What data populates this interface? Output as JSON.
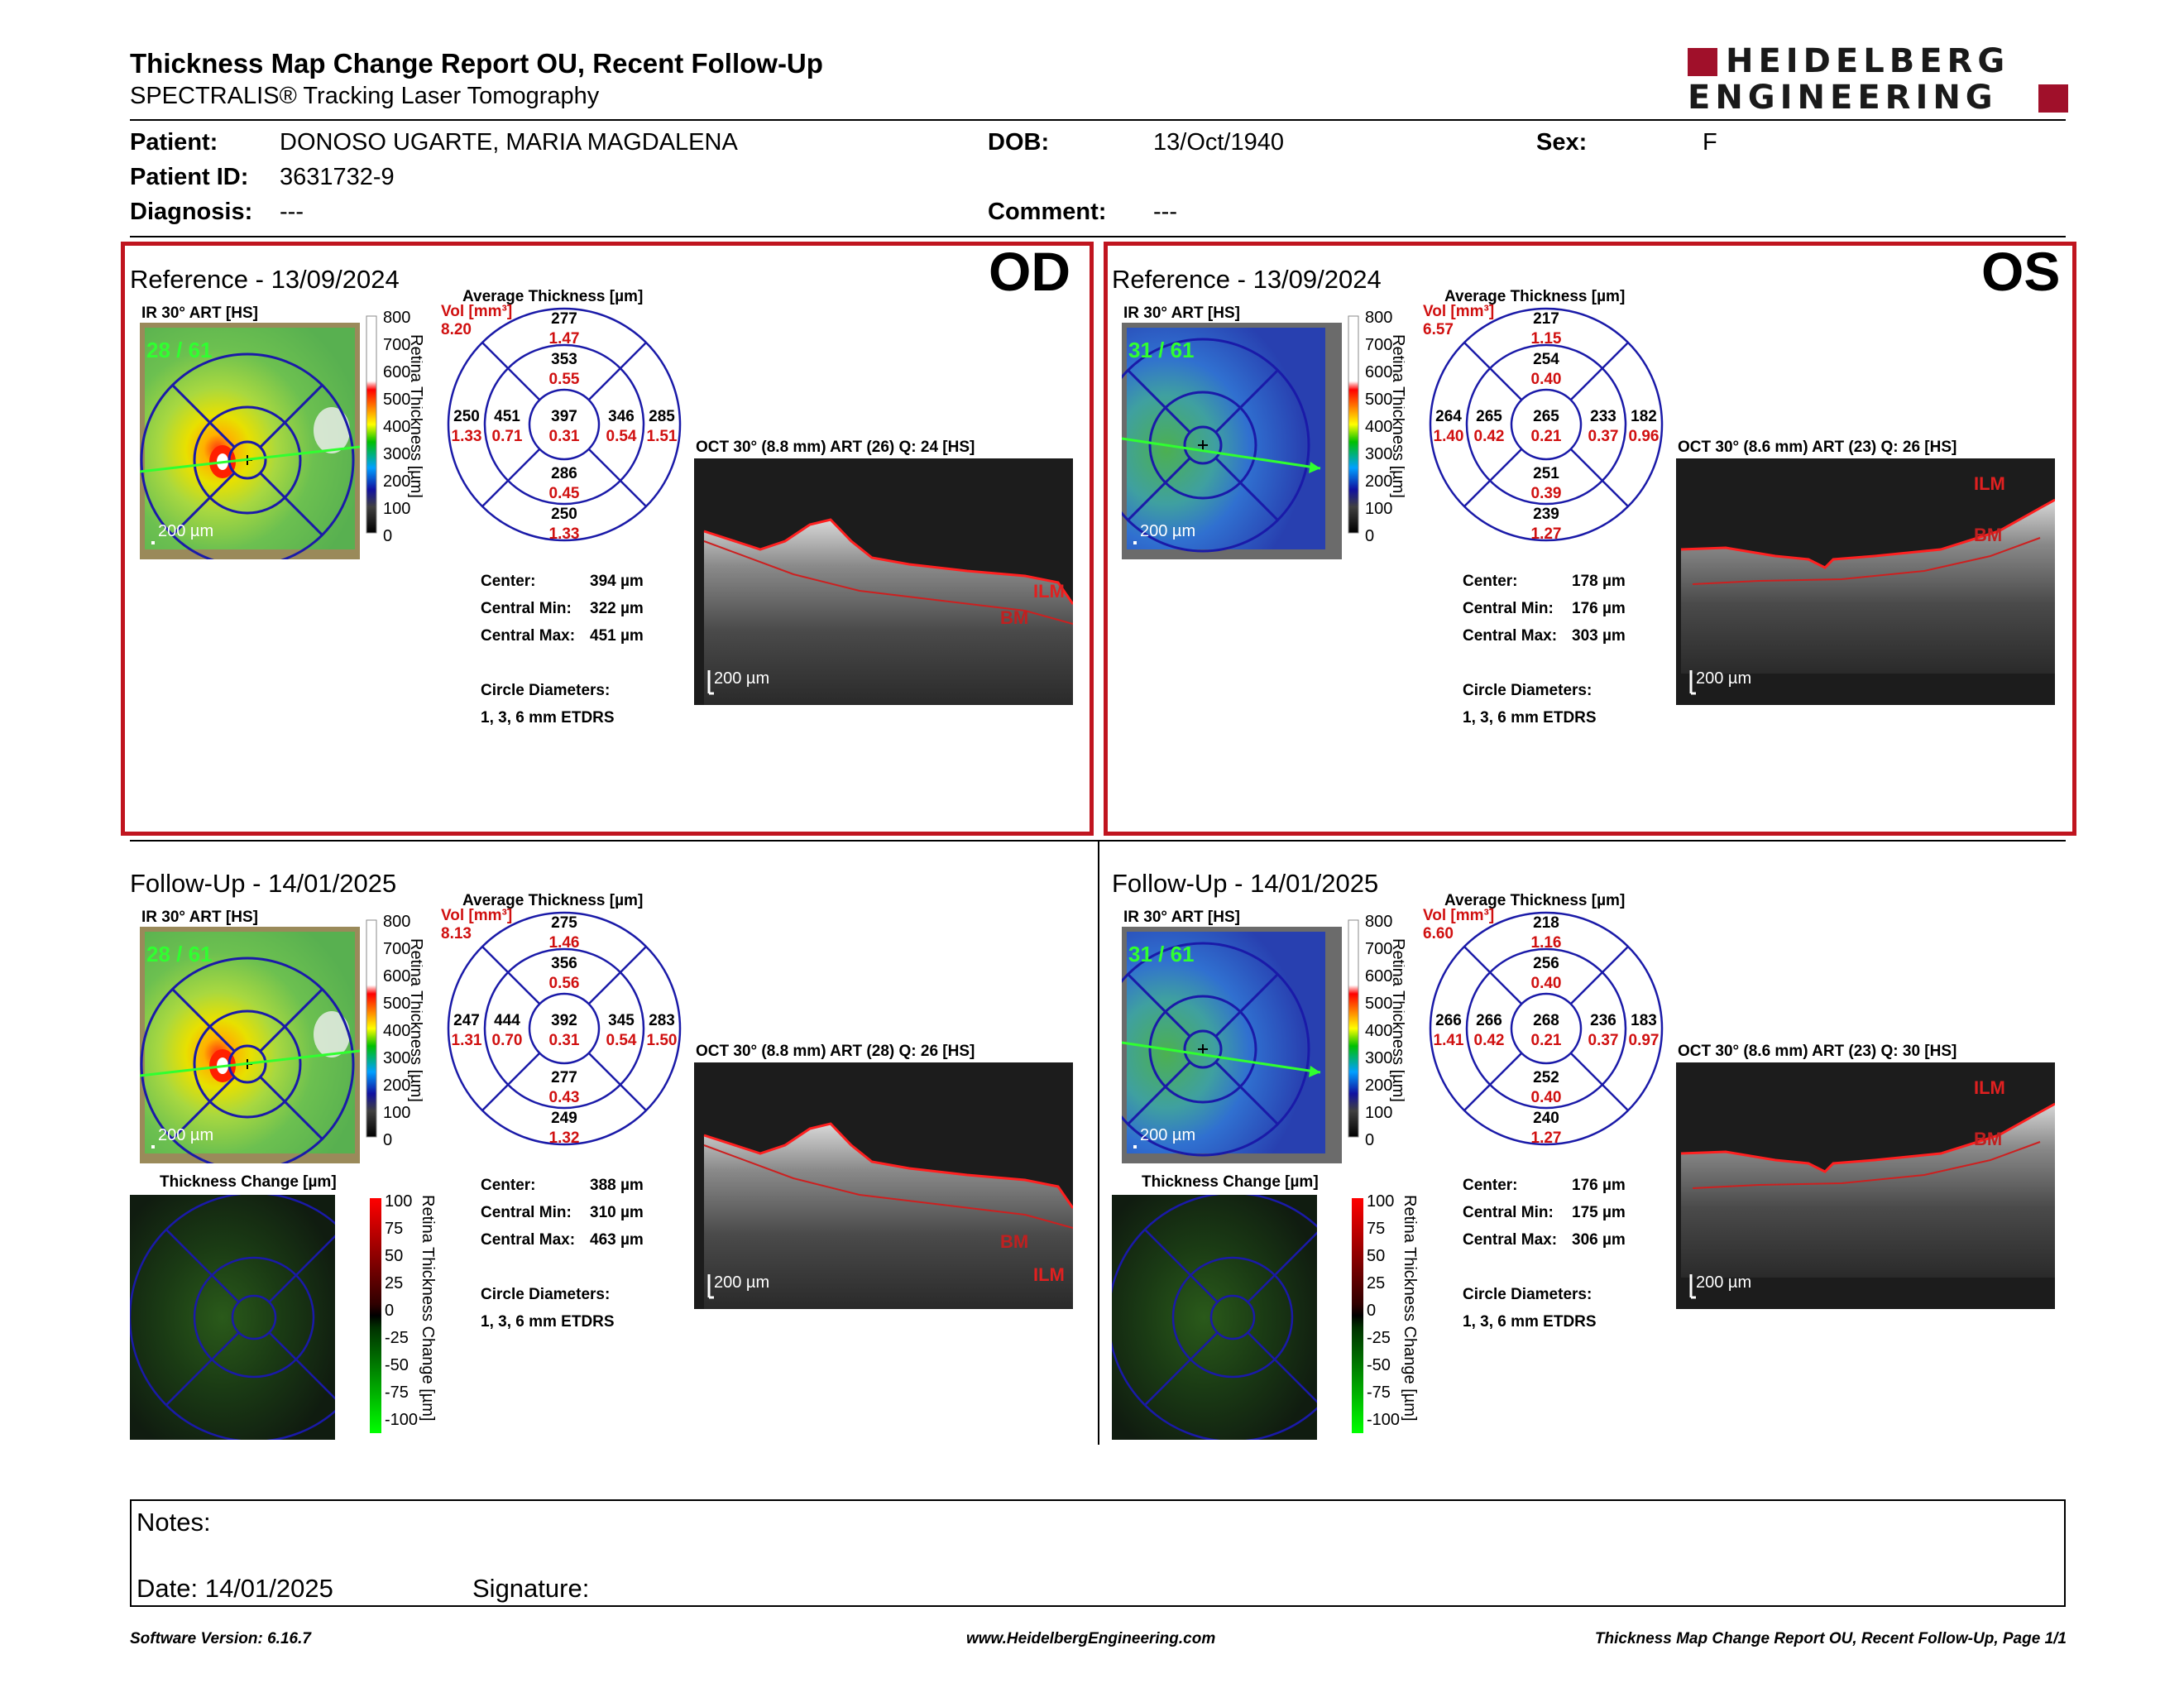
{
  "header": {
    "title": "Thickness Map Change Report OU, Recent Follow-Up",
    "subtitle": "SPECTRALIS® Tracking Laser Tomography",
    "logo_line1": "HEIDELBERG",
    "logo_line2": "ENGINEERING"
  },
  "patient": {
    "patient_label": "Patient:",
    "patient_value": "DONOSO UGARTE, MARIA MAGDALENA",
    "dob_label": "DOB:",
    "dob_value": "13/Oct/1940",
    "sex_label": "Sex:",
    "sex_value": "F",
    "id_label": "Patient ID:",
    "id_value": "3631732-9",
    "diagnosis_label": "Diagnosis:",
    "diagnosis_value": "---",
    "comment_label": "Comment:",
    "comment_value": "---"
  },
  "common": {
    "avg_thickness": "Average Thickness [µm]",
    "vol_label": "Vol [mm³]",
    "scale_bar": "200 µm",
    "colorbar_title": "Retina Thickness [µm]",
    "colorbar_ticks": [
      "800",
      "700",
      "600",
      "500",
      "400",
      "300",
      "200",
      "100",
      "0"
    ],
    "change_title": "Thickness Change [µm]",
    "change_bar_title": "Retina Thickness Change [µm]",
    "change_ticks": [
      "100",
      "75",
      "50",
      "25",
      "0",
      "-25",
      "-50",
      "-75",
      "-100"
    ],
    "center_label": "Center:",
    "cmin_label": "Central Min:",
    "cmax_label": "Central Max:",
    "diam_label": "Circle Diameters:",
    "diam_value": "1, 3, 6 mm ETDRS",
    "ilm": "ILM",
    "bm": "BM"
  },
  "od": {
    "eye": "OD",
    "reference": {
      "title": "Reference - 13/09/2024",
      "ir_label": "IR 30° ART [HS]",
      "frame": "28 / 61",
      "oct_label": "OCT 30° (8.8 mm) ART (26) Q: 24 [HS]",
      "vol": "8.20",
      "grid": {
        "c": [
          "397",
          "0.31"
        ],
        "is": [
          "353",
          "0.55"
        ],
        "io": [
          "277",
          "1.47"
        ],
        "ii": [
          "286",
          "0.45"
        ],
        "iio": [
          "250",
          "1.33"
        ],
        "ln": [
          "451",
          "0.71"
        ],
        "lo": [
          "250",
          "1.33"
        ],
        "rn": [
          "346",
          "0.54"
        ],
        "ro": [
          "285",
          "1.51"
        ]
      },
      "center": "394 µm",
      "cmin": "322 µm",
      "cmax": "451 µm"
    },
    "followup": {
      "title": "Follow-Up - 14/01/2025",
      "ir_label": "IR 30° ART [HS]",
      "frame": "28 / 61",
      "oct_label": "OCT 30° (8.8 mm) ART (28) Q: 26 [HS]",
      "vol": "8.13",
      "grid": {
        "c": [
          "392",
          "0.31"
        ],
        "is": [
          "356",
          "0.56"
        ],
        "io": [
          "275",
          "1.46"
        ],
        "ii": [
          "277",
          "0.43"
        ],
        "iio": [
          "249",
          "1.32"
        ],
        "ln": [
          "444",
          "0.70"
        ],
        "lo": [
          "247",
          "1.31"
        ],
        "rn": [
          "345",
          "0.54"
        ],
        "ro": [
          "283",
          "1.50"
        ]
      },
      "center": "388 µm",
      "cmin": "310 µm",
      "cmax": "463 µm"
    }
  },
  "os": {
    "eye": "OS",
    "reference": {
      "title": "Reference - 13/09/2024",
      "ir_label": "IR 30° ART [HS]",
      "frame": "31 / 61",
      "oct_label": "OCT 30° (8.6 mm) ART (23) Q: 26 [HS]",
      "vol": "6.57",
      "grid": {
        "c": [
          "265",
          "0.21"
        ],
        "is": [
          "254",
          "0.40"
        ],
        "io": [
          "217",
          "1.15"
        ],
        "ii": [
          "251",
          "0.39"
        ],
        "iio": [
          "239",
          "1.27"
        ],
        "ln": [
          "265",
          "0.42"
        ],
        "lo": [
          "264",
          "1.40"
        ],
        "rn": [
          "233",
          "0.37"
        ],
        "ro": [
          "182",
          "0.96"
        ]
      },
      "center": "178 µm",
      "cmin": "176 µm",
      "cmax": "303 µm"
    },
    "followup": {
      "title": "Follow-Up - 14/01/2025",
      "ir_label": "IR 30° ART [HS]",
      "frame": "31 / 61",
      "oct_label": "OCT 30° (8.6 mm) ART (23) Q: 30 [HS]",
      "vol": "6.60",
      "grid": {
        "c": [
          "268",
          "0.21"
        ],
        "is": [
          "256",
          "0.40"
        ],
        "io": [
          "218",
          "1.16"
        ],
        "ii": [
          "252",
          "0.40"
        ],
        "iio": [
          "240",
          "1.27"
        ],
        "ln": [
          "266",
          "0.42"
        ],
        "lo": [
          "266",
          "1.41"
        ],
        "rn": [
          "236",
          "0.37"
        ],
        "ro": [
          "183",
          "0.97"
        ]
      },
      "center": "176 µm",
      "cmin": "175 µm",
      "cmax": "306 µm"
    }
  },
  "notes": {
    "notes_label": "Notes:",
    "date_label": "Date: 14/01/2025",
    "signature_label": "Signature:"
  },
  "footer": {
    "version": "Software Version: 6.16.7",
    "website": "www.HeidelbergEngineering.com",
    "page": "Thickness Map Change Report OU, Recent Follow-Up, Page 1/1"
  },
  "colors": {
    "accent_red": "#c0151f",
    "grid_blue": "#1a1aa8",
    "value_red": "#d01010"
  }
}
